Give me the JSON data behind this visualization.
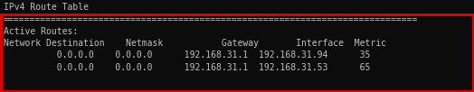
{
  "title": "IPv4 Route Table",
  "separator": "==============================================================================",
  "active_routes_label": "Active Routes:",
  "col_header": "Network Destination    Netmask           Gateway       Interface  Metric",
  "rows": [
    "          0.0.0.0    0.0.0.0      192.168.31.1  192.168.31.94      35",
    "          0.0.0.0    0.0.0.0      192.168.31.1  192.168.31.53      65"
  ],
  "bg_color": "#0c0c0c",
  "text_color": "#c0c0c0",
  "border_color": "#dd0000",
  "font_family": "monospace",
  "font_size": 7.0,
  "dpi": 100,
  "fig_w": 5.24,
  "fig_h": 1.02
}
